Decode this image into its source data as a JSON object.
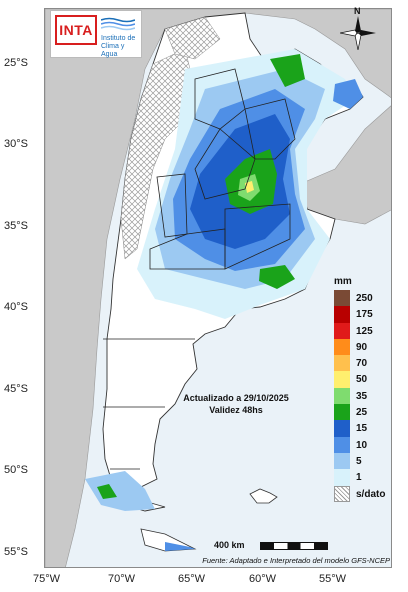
{
  "logo": {
    "name": "INTA",
    "institute_line1": "Instituto de",
    "institute_line2": "Clima y Agua"
  },
  "compass": {
    "north": "N"
  },
  "latitude_labels": [
    "25°S",
    "30°S",
    "35°S",
    "40°S",
    "45°S",
    "50°S",
    "55°S"
  ],
  "longitude_labels": [
    "75°W",
    "70°W",
    "65°W",
    "60°W",
    "55°W"
  ],
  "update": {
    "line1": "Actualizado a 29/10/2025",
    "line2": "Validez 48hs"
  },
  "scale": {
    "label": "400 km"
  },
  "source": "Fuente: Adaptado e Interpretado del modelo GFS-NCEP",
  "legend": {
    "unit": "mm",
    "items": [
      {
        "label": "250",
        "color": "#7a4a35"
      },
      {
        "label": "175",
        "color": "#b80000"
      },
      {
        "label": "125",
        "color": "#e01a1a"
      },
      {
        "label": "90",
        "color": "#ff8c1a"
      },
      {
        "label": "70",
        "color": "#ffc04d"
      },
      {
        "label": "50",
        "color": "#ffef6e"
      },
      {
        "label": "35",
        "color": "#7fdc6f"
      },
      {
        "label": "25",
        "color": "#1aa31a"
      },
      {
        "label": "15",
        "color": "#1f5fc9"
      },
      {
        "label": "10",
        "color": "#4f8fe6"
      },
      {
        "label": "5",
        "color": "#9cc9f2"
      },
      {
        "label": "1",
        "color": "#d8f2fb"
      },
      {
        "label": "s/dato",
        "color": "hatch"
      }
    ]
  }
}
